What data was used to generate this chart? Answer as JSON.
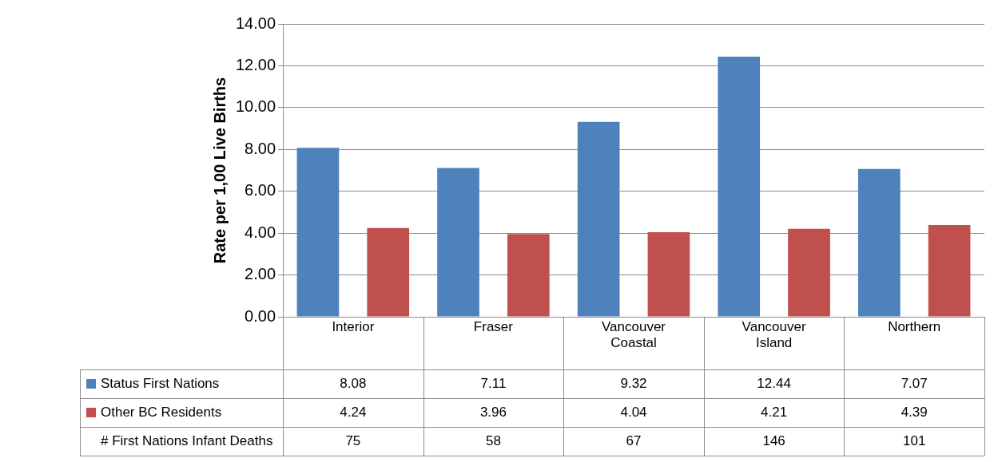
{
  "chart_data": {
    "type": "bar",
    "ylabel": "Rate per 1,00 Live Births",
    "categories": [
      "Interior",
      "Fraser",
      "Vancouver Coastal",
      "Vancouver Island",
      "Northern"
    ],
    "series": [
      {
        "name": "Status First Nations",
        "color": "#4f81bd",
        "values": [
          8.08,
          7.11,
          9.32,
          12.44,
          7.07
        ]
      },
      {
        "name": "Other BC Residents",
        "color": "#c0504d",
        "values": [
          4.24,
          3.96,
          4.04,
          4.21,
          4.39
        ]
      }
    ],
    "ylim": [
      0,
      14
    ],
    "yticks": [
      {
        "value": 0,
        "label": "0.00"
      },
      {
        "value": 2,
        "label": "2.00"
      },
      {
        "value": 4,
        "label": "4.00"
      },
      {
        "value": 6,
        "label": "6.00"
      },
      {
        "value": 8,
        "label": "8.00"
      },
      {
        "value": 10,
        "label": "10.00"
      },
      {
        "value": 12,
        "label": "12.00"
      },
      {
        "value": 14,
        "label": "14.00"
      }
    ],
    "grid": "y",
    "legend": "bottom",
    "data_labels": true,
    "annotations": [
      "# First Nations Infant Deaths",
      "75",
      "58",
      "67",
      "146",
      "101"
    ]
  }
}
